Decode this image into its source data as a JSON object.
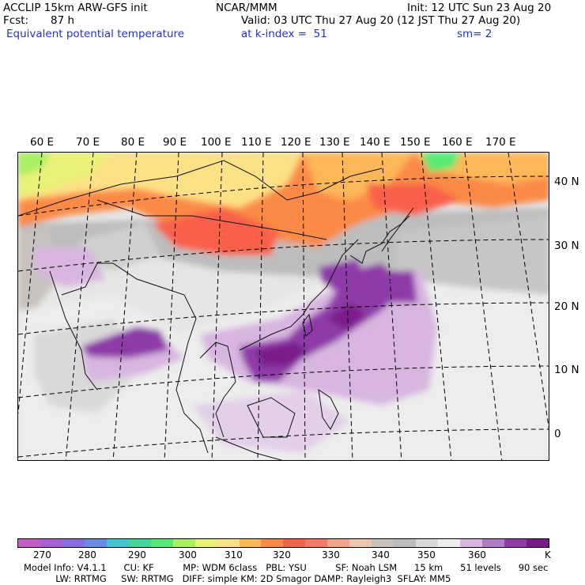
{
  "header": {
    "model_line": "ACCLIP 15km ARW-GFS init",
    "org": "NCAR/MMM",
    "init": "Init: 12 UTC Sun 23 Aug 20",
    "fcst_label": "Fcst:",
    "fcst_value": "87 h",
    "valid": "Valid: 03 UTC Thu 27 Aug 20 (12 JST Thu 27 Aug 20)",
    "field": "Equivalent potential temperature",
    "level": "at k-index =  51",
    "smooth": "sm= 2"
  },
  "map": {
    "lon_labels": [
      "60 E",
      "70 E",
      "80 E",
      "90 E",
      "100 E",
      "110 E",
      "120 E",
      "130 E",
      "140 E",
      "150 E",
      "160 E",
      "170 E"
    ],
    "lat_labels": [
      "40 N",
      "30 N",
      "20 N",
      "10 N",
      "0"
    ]
  },
  "colorbar": {
    "colors": [
      "#c65bc8",
      "#a95ed8",
      "#8b6be0",
      "#6a8ae8",
      "#3fc6d2",
      "#3dd99a",
      "#57ea72",
      "#a8f060",
      "#e9f276",
      "#fde186",
      "#fcb858",
      "#fb8a47",
      "#f8604a",
      "#f47a6a",
      "#f5a48c",
      "#eec6ae",
      "#c8c2be",
      "#bdbdbd",
      "#d9d9d9",
      "#ededed",
      "#d8b6e0",
      "#b07cc8",
      "#8e3aa8",
      "#7a1a8a"
    ],
    "ticks": [
      "270",
      "280",
      "290",
      "300",
      "310",
      "320",
      "330",
      "340",
      "350",
      "360"
    ],
    "unit": "K"
  },
  "info": {
    "line1": "Model Info: V4.1.1      CU: KF          MP: WDM 6class   PBL: YSU          SF: Noah LSM      15 km      51 levels      90 sec",
    "line2": "           LW: RRTMG     SW: RRTMG   DIFF: simple KM: 2D Smagor DAMP: Rayleigh3  SFLAY: MM5"
  }
}
